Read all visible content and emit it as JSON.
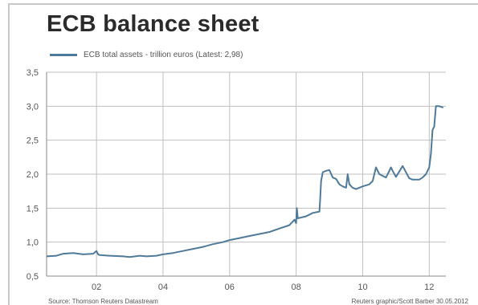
{
  "header": {
    "title": "ECB balance sheet"
  },
  "legend": {
    "label": "ECB total assets - trillion euros (Latest: 2,98)"
  },
  "footer": {
    "source": "Source: Thomson Reuters Datastream",
    "credit": "Reuters graphic/Scott Barber 30.05.2012"
  },
  "colors": {
    "line": "#4f7a9a",
    "grid": "#bfbfbf",
    "axis_text": "#555555",
    "title": "#2b2b2b"
  },
  "chart_data": {
    "type": "line",
    "title": "ECB balance sheet",
    "xlabel": "",
    "ylabel": "",
    "grid": true,
    "legend_position": "top-left",
    "xlim": [
      2000.5,
      2012.5
    ],
    "ylim": [
      0.5,
      3.5
    ],
    "x_ticks": [
      2002,
      2004,
      2006,
      2008,
      2010,
      2012
    ],
    "x_tick_labels": [
      "02",
      "04",
      "06",
      "08",
      "10",
      "12"
    ],
    "y_ticks": [
      0.5,
      1.0,
      1.5,
      2.0,
      2.5,
      3.0,
      3.5
    ],
    "y_tick_labels": [
      "0,5",
      "1,0",
      "1,5",
      "2,0",
      "2,5",
      "3,0",
      "3,5"
    ],
    "series": [
      {
        "name": "ECB total assets - trillion euros (Latest: 2,98)",
        "x": [
          2000.5,
          2000.8,
          2001.0,
          2001.3,
          2001.6,
          2001.9,
          2002.0,
          2002.05,
          2002.1,
          2002.4,
          2002.8,
          2003.0,
          2003.3,
          2003.5,
          2003.8,
          2004.0,
          2004.3,
          2004.6,
          2004.9,
          2005.2,
          2005.5,
          2005.8,
          2006.0,
          2006.3,
          2006.6,
          2006.9,
          2007.2,
          2007.5,
          2007.8,
          2007.95,
          2008.0,
          2008.02,
          2008.05,
          2008.3,
          2008.5,
          2008.7,
          2008.72,
          2008.75,
          2008.8,
          2008.9,
          2009.0,
          2009.1,
          2009.2,
          2009.3,
          2009.4,
          2009.5,
          2009.55,
          2009.6,
          2009.7,
          2009.8,
          2010.0,
          2010.2,
          2010.3,
          2010.4,
          2010.5,
          2010.7,
          2010.85,
          2010.9,
          2011.0,
          2011.2,
          2011.4,
          2011.5,
          2011.7,
          2011.8,
          2011.9,
          2012.0,
          2012.05,
          2012.1,
          2012.15,
          2012.2,
          2012.3,
          2012.42
        ],
        "y": [
          0.79,
          0.8,
          0.83,
          0.84,
          0.82,
          0.83,
          0.87,
          0.82,
          0.81,
          0.8,
          0.79,
          0.78,
          0.8,
          0.79,
          0.8,
          0.82,
          0.84,
          0.87,
          0.9,
          0.93,
          0.97,
          1.0,
          1.03,
          1.06,
          1.09,
          1.12,
          1.15,
          1.2,
          1.25,
          1.33,
          1.28,
          1.5,
          1.35,
          1.38,
          1.43,
          1.45,
          1.6,
          1.9,
          2.03,
          2.05,
          2.06,
          1.95,
          1.93,
          1.85,
          1.82,
          1.8,
          2.0,
          1.85,
          1.8,
          1.78,
          1.82,
          1.85,
          1.9,
          2.1,
          2.0,
          1.95,
          2.1,
          2.05,
          1.96,
          2.12,
          1.94,
          1.92,
          1.92,
          1.95,
          2.0,
          2.1,
          2.3,
          2.65,
          2.7,
          3.0,
          3.0,
          2.98
        ]
      }
    ]
  }
}
